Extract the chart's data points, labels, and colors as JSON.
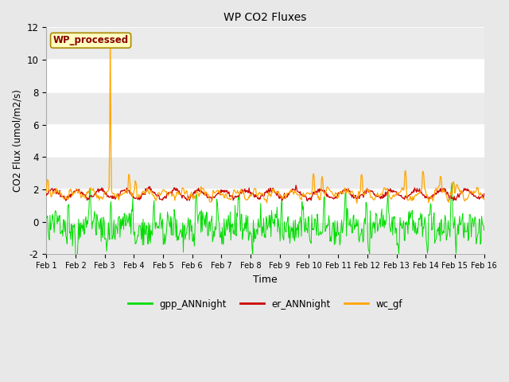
{
  "title": "WP CO2 Fluxes",
  "xlabel": "Time",
  "ylabel_display": "CO2 Flux (umol/m2/s)",
  "ylim": [
    -2,
    12
  ],
  "yticks": [
    -2,
    0,
    2,
    4,
    6,
    8,
    10,
    12
  ],
  "n_points": 720,
  "days": 15,
  "annotation_text": "WP_processed",
  "legend_labels": [
    "gpp_ANNnight",
    "er_ANNnight",
    "wc_gf"
  ],
  "colors": {
    "gpp": "#00DD00",
    "er": "#CC0000",
    "wc": "#FFA500",
    "annotation_bg": "#FFFFC0",
    "annotation_text": "#880000",
    "annotation_border": "#AA8800"
  },
  "tick_labels": [
    "Feb 1",
    "Feb 2",
    "Feb 3",
    "Feb 4",
    "Feb 5",
    "Feb 6",
    "Feb 7",
    "Feb 8",
    "Feb 9",
    "Feb 10",
    "Feb 11",
    "Feb 12",
    "Feb 13",
    "Feb 14",
    "Feb 15",
    "Feb 16"
  ],
  "fig_bg": "#E8E8E8",
  "plot_bg": "#FFFFFF",
  "band_color": "#EBEBEB"
}
